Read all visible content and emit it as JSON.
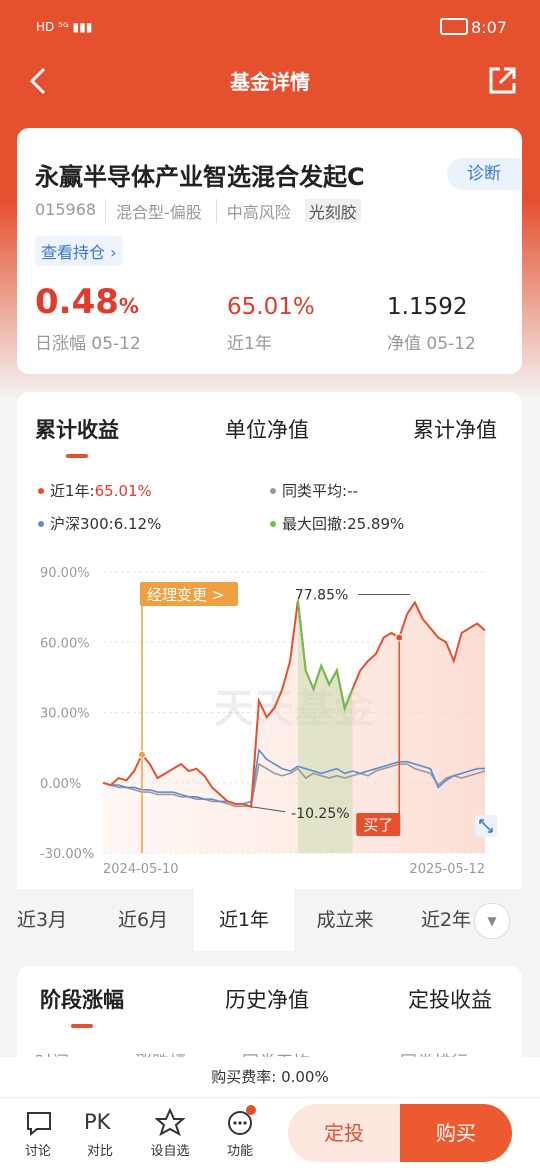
{
  "status_bar": {
    "time": "8:07"
  },
  "header": {
    "title": "基金详情"
  },
  "fund": {
    "name": "永赢半导体产业智选混合发起C",
    "diagnose": "诊断",
    "code": "015968",
    "tags": [
      "混合型-偏股",
      "中高风险",
      "光刻胶"
    ],
    "holdings_link": "查看持仓 ›",
    "stats": [
      {
        "value": "0.48",
        "unit": "%",
        "label": "日涨幅 05-12"
      },
      {
        "value": "65.01%",
        "label": "近1年"
      },
      {
        "value": "1.1592",
        "label": "净值 05-12"
      }
    ]
  },
  "chart_tabs": {
    "items": [
      "累计收益",
      "单位净值",
      "累计净值"
    ],
    "active": 0
  },
  "chart_data": {
    "type": "line",
    "ylim": [
      -30,
      90
    ],
    "yticks": [
      {
        "value": 90,
        "label": "90.00%"
      },
      {
        "value": 60,
        "label": "60.00%"
      },
      {
        "value": 30,
        "label": "30.00%"
      },
      {
        "value": 0,
        "label": "0.00%"
      },
      {
        "value": -30,
        "label": "-30.00%"
      }
    ],
    "grid": true,
    "categories": [
      "2024-05-10",
      null,
      null,
      null,
      null,
      null,
      null,
      null,
      null,
      null,
      null,
      null,
      null,
      null,
      null,
      null,
      null,
      null,
      null,
      null,
      null,
      null,
      null,
      null,
      null,
      null,
      null,
      null,
      null,
      null,
      null,
      null,
      null,
      null,
      null,
      null,
      null,
      null,
      null,
      null,
      null,
      null,
      null,
      null,
      null,
      null,
      null,
      null,
      null,
      "2025-05-12"
    ],
    "series": [
      {
        "name": "近1年:",
        "legend_value": "65.01%",
        "color": "#e5502f",
        "values": [
          0,
          -1,
          2,
          1,
          5,
          12,
          8,
          2,
          4,
          6,
          8,
          5,
          6,
          3,
          -2,
          -5,
          -8,
          -9,
          -9,
          -10.25,
          35,
          28,
          32,
          40,
          52,
          77.85,
          48,
          40,
          50,
          42,
          48,
          31.8,
          40,
          48,
          52,
          55,
          62,
          64,
          62,
          72,
          77,
          70,
          66,
          62,
          60,
          52,
          64,
          66,
          68,
          65.01
        ]
      },
      {
        "name": "同类平均:",
        "legend_value": "--",
        "color": "#999999",
        "values": [
          0,
          -1,
          -2,
          -2,
          -3,
          -4,
          -4,
          -5,
          -5,
          -5,
          -6,
          -6,
          -7,
          -7,
          -8,
          -8,
          -9,
          -10,
          -10,
          -10,
          8,
          6,
          4,
          3,
          4,
          6,
          2,
          4,
          3,
          2,
          3,
          2,
          3,
          4,
          3,
          5,
          6,
          7,
          8,
          8,
          6,
          5,
          4,
          -1,
          2,
          3,
          2,
          3,
          4,
          5
        ]
      },
      {
        "name": "沪深300:",
        "legend_value": "6.12%",
        "color": "#5b8ad6",
        "values": [
          0,
          -1,
          -1,
          -2,
          -2,
          -3,
          -3,
          -4,
          -4,
          -4,
          -5,
          -6,
          -6,
          -7,
          -7,
          -8,
          -8,
          -9,
          -9,
          -8,
          14,
          10,
          8,
          6,
          5,
          7,
          6,
          5,
          4,
          5,
          6,
          4,
          5,
          4,
          5,
          6,
          7,
          8,
          9,
          9,
          8,
          7,
          6,
          -2,
          1,
          3,
          4,
          5,
          6,
          6.12
        ]
      }
    ],
    "drawdown": {
      "name": "最大回撤:",
      "legend_value": "25.89%",
      "color": "#6cc04a"
    },
    "events": [
      {
        "text": "经理变更 >",
        "index": 5,
        "color": "#f0a040"
      },
      {
        "text": "买了",
        "index": 38,
        "color": "#e5502f"
      }
    ],
    "peak_label": "77.85%",
    "low_label": "-10.25%",
    "watermark": "天天基金"
  },
  "period_tabs": {
    "items": [
      "近3月",
      "近6月",
      "近1年",
      "成立来",
      "近2年"
    ],
    "active": 2
  },
  "section_tabs": {
    "items": [
      "阶段涨幅",
      "历史净值",
      "定投收益"
    ],
    "active": 0
  },
  "table_header": [
    "时间",
    "涨跌幅",
    "同类平均",
    "同类排行"
  ],
  "fee": "购买费率: 0.00%",
  "bottom_nav": {
    "items": [
      "讨论",
      "对比",
      "设自选",
      "功能"
    ],
    "pk_icon": "PK"
  },
  "buttons": {
    "plan": "定投",
    "buy": "购买"
  }
}
